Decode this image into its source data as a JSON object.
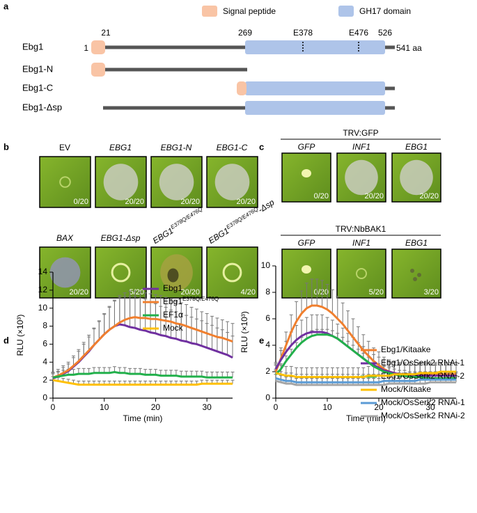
{
  "panel_a": {
    "label": "a",
    "legend": [
      "Signal peptide",
      "GH17 domain"
    ],
    "constructs": [
      "Ebg1",
      "Ebg1-N",
      "Ebg1-C",
      "Ebg1-Δsp"
    ],
    "positions": [
      "1",
      "21",
      "269",
      "E378",
      "E476",
      "526",
      "541 aa"
    ]
  },
  "panel_b": {
    "label": "b",
    "top": {
      "labels": [
        {
          "text": "EV"
        },
        {
          "text": "EBG1"
        },
        {
          "text": "EBG1-N"
        },
        {
          "text": "EBG1-C"
        }
      ],
      "counts": [
        "0/20",
        "20/20",
        "20/20",
        "20/20"
      ]
    },
    "bottom": {
      "labels": [
        {
          "text": "BAX"
        },
        {
          "text": "EBG1-Δsp"
        },
        {
          "text": "EBG1",
          "sup": "E378Q/E476Q"
        },
        {
          "text": "EBG1",
          "sup": "E378Q/E476Q",
          "suffix": "-Δsp"
        }
      ],
      "counts": [
        "20/20",
        "5/20",
        "20/20",
        "4/20"
      ]
    }
  },
  "panel_c": {
    "label": "c",
    "groups": [
      {
        "header": "TRV:GFP",
        "labels": [
          "GFP",
          "INF1",
          "EBG1"
        ],
        "counts": [
          "0/20",
          "20/20",
          "20/20"
        ]
      },
      {
        "header": "TRV:NbBAK1",
        "labels": [
          "GFP",
          "INF1",
          "EBG1"
        ],
        "counts": [
          "0/20",
          "5/20",
          "3/20"
        ]
      }
    ]
  },
  "chart_data": [
    {
      "label": "d",
      "type": "line",
      "xlabel": "Time (min)",
      "ylabel": "RLU (×10³)",
      "xlim": [
        0,
        35
      ],
      "xticks": [
        0,
        10,
        20,
        30
      ],
      "ylim": [
        0,
        14
      ],
      "yticks": [
        0,
        2,
        4,
        6,
        8,
        10,
        12,
        14
      ],
      "x": [
        0,
        1,
        2,
        3,
        4,
        5,
        6,
        7,
        8,
        9,
        10,
        11,
        12,
        13,
        14,
        15,
        16,
        17,
        18,
        19,
        20,
        21,
        22,
        23,
        24,
        25,
        26,
        27,
        28,
        29,
        30,
        31,
        32,
        33,
        34,
        35
      ],
      "series": [
        {
          "name": "Ebg1",
          "color": "#7030a0",
          "values": [
            2.2,
            2.4,
            2.7,
            3.0,
            3.5,
            4.0,
            4.6,
            5.2,
            5.9,
            6.5,
            7.1,
            7.6,
            8.0,
            8.2,
            8.1,
            7.9,
            7.8,
            7.6,
            7.5,
            7.3,
            7.2,
            7.0,
            6.9,
            6.7,
            6.6,
            6.4,
            6.3,
            6.1,
            6.0,
            5.8,
            5.6,
            5.4,
            5.2,
            5.0,
            4.8,
            4.5
          ],
          "errors": [
            0.5,
            0.6,
            0.7,
            0.8,
            1.0,
            1.2,
            1.4,
            1.6,
            1.8,
            2.0,
            2.2,
            2.5,
            2.8,
            3.0,
            3.2,
            3.4,
            3.5,
            3.5,
            3.5,
            3.4,
            3.3,
            3.2,
            3.2,
            3.1,
            3.0,
            3.0,
            2.9,
            2.9,
            2.8,
            2.8,
            2.7,
            2.7,
            2.6,
            2.6,
            2.5,
            2.4
          ]
        },
        {
          "name": "Ebg1",
          "name_sup": "E378Q/E476Q",
          "color": "#f07f2e",
          "values": [
            2.3,
            2.5,
            2.8,
            3.1,
            3.6,
            4.1,
            4.7,
            5.3,
            5.9,
            6.5,
            7.1,
            7.6,
            8.0,
            8.4,
            8.7,
            8.9,
            9.0,
            8.9,
            8.9,
            8.8,
            8.8,
            8.7,
            8.6,
            8.5,
            8.3,
            8.2,
            8.0,
            7.8,
            7.6,
            7.4,
            7.2,
            7.0,
            6.8,
            6.7,
            6.5,
            6.3
          ],
          "errors": [
            0.6,
            0.7,
            0.8,
            0.9,
            1.1,
            1.3,
            1.5,
            1.7,
            1.9,
            2.1,
            2.3,
            2.6,
            2.9,
            3.0,
            3.0,
            3.0,
            2.9,
            2.9,
            2.8,
            2.8,
            2.7,
            2.7,
            2.6,
            2.5,
            2.5,
            2.4,
            2.4,
            2.3,
            2.3,
            2.2,
            2.2,
            2.1,
            2.1,
            2.0,
            2.0,
            2.0
          ]
        },
        {
          "name": "EF1α",
          "color": "#22b04b",
          "values": [
            2.3,
            2.4,
            2.5,
            2.6,
            2.6,
            2.7,
            2.7,
            2.7,
            2.8,
            2.8,
            2.8,
            2.8,
            2.9,
            2.8,
            2.8,
            2.7,
            2.7,
            2.7,
            2.6,
            2.6,
            2.6,
            2.5,
            2.5,
            2.5,
            2.5,
            2.4,
            2.4,
            2.4,
            2.4,
            2.4,
            2.3,
            2.3,
            2.3,
            2.3,
            2.3,
            2.3
          ],
          "errors": [
            0.5,
            0.5,
            0.6,
            0.6,
            0.6,
            0.6,
            0.6,
            0.6,
            0.6,
            0.6,
            0.6,
            0.6,
            0.6,
            0.6,
            0.6,
            0.6,
            0.6,
            0.6,
            0.6,
            0.6,
            0.6,
            0.6,
            0.6,
            0.6,
            0.6,
            0.6,
            0.6,
            0.6,
            0.6,
            0.6,
            0.6,
            0.6,
            0.6,
            0.6,
            0.6,
            0.6
          ]
        },
        {
          "name": "Mock",
          "color": "#ffc000",
          "values": [
            2.0,
            1.9,
            1.8,
            1.7,
            1.6,
            1.5,
            1.5,
            1.5,
            1.5,
            1.5,
            1.5,
            1.5,
            1.5,
            1.5,
            1.5,
            1.5,
            1.5,
            1.5,
            1.5,
            1.5,
            1.5,
            1.5,
            1.5,
            1.5,
            1.5,
            1.5,
            1.5,
            1.5,
            1.5,
            1.6,
            1.6,
            1.6,
            1.6,
            1.6,
            1.6,
            1.6
          ],
          "errors": [
            0.4,
            0.4,
            0.4,
            0.4,
            0.4,
            0.4,
            0.4,
            0.4,
            0.4,
            0.4,
            0.4,
            0.4,
            0.4,
            0.4,
            0.4,
            0.4,
            0.4,
            0.4,
            0.4,
            0.4,
            0.4,
            0.4,
            0.4,
            0.4,
            0.4,
            0.4,
            0.4,
            0.4,
            0.4,
            0.4,
            0.4,
            0.4,
            0.4,
            0.4,
            0.4,
            0.4
          ]
        }
      ]
    },
    {
      "label": "e",
      "type": "line",
      "xlabel": "Time (min)",
      "ylabel": "RLU (×10³)",
      "xlim": [
        0,
        35
      ],
      "xticks": [
        0,
        10,
        20,
        30
      ],
      "ylim": [
        0,
        10
      ],
      "yticks": [
        0,
        2,
        4,
        6,
        8,
        10
      ],
      "x": [
        0,
        1,
        2,
        3,
        4,
        5,
        6,
        7,
        8,
        9,
        10,
        11,
        12,
        13,
        14,
        15,
        16,
        17,
        18,
        19,
        20,
        21,
        22,
        23,
        24,
        25,
        26,
        27,
        28,
        29,
        30,
        31,
        32,
        33,
        34,
        35
      ],
      "series": [
        {
          "name": "Ebg1/Kitaake",
          "color": "#f07f2e",
          "values": [
            2.0,
            3.0,
            4.0,
            5.0,
            5.8,
            6.4,
            6.8,
            7.0,
            7.0,
            6.9,
            6.7,
            6.4,
            6.0,
            5.6,
            5.1,
            4.6,
            4.1,
            3.6,
            3.2,
            2.8,
            2.5,
            2.2,
            2.0,
            1.9,
            1.8,
            1.8,
            1.8,
            1.8,
            1.8,
            1.8,
            1.8,
            1.8,
            1.8,
            1.8,
            1.8,
            1.8
          ],
          "errors": [
            0.5,
            0.8,
            1.0,
            1.3,
            1.5,
            1.7,
            1.9,
            2.0,
            2.0,
            2.0,
            1.9,
            1.8,
            1.7,
            1.6,
            1.5,
            1.4,
            1.3,
            1.2,
            1.1,
            1.0,
            1.0,
            0.9,
            0.9,
            0.9,
            0.9,
            0.9,
            0.9,
            0.9,
            0.9,
            0.9,
            0.9,
            0.9,
            0.9,
            0.9,
            0.9,
            0.9
          ]
        },
        {
          "name": "Ebg1/OsSerk2 RNAi-1",
          "color": "#7030a0",
          "values": [
            2.2,
            2.9,
            3.5,
            4.0,
            4.4,
            4.7,
            4.9,
            5.0,
            5.0,
            5.0,
            4.9,
            4.7,
            4.5,
            4.2,
            3.9,
            3.6,
            3.3,
            3.0,
            2.7,
            2.5,
            2.3,
            2.1,
            2.0,
            1.9,
            1.8,
            1.8,
            1.7,
            1.7,
            1.7,
            1.7,
            1.7,
            1.7,
            1.7,
            1.7,
            1.7,
            1.7
          ],
          "errors": [
            0.5,
            0.7,
            0.8,
            1.0,
            1.1,
            1.2,
            1.2,
            1.3,
            1.3,
            1.3,
            1.2,
            1.2,
            1.1,
            1.1,
            1.0,
            1.0,
            0.9,
            0.9,
            0.9,
            0.8,
            0.8,
            0.8,
            0.8,
            0.8,
            0.8,
            0.8,
            0.8,
            0.8,
            0.8,
            0.8,
            0.8,
            0.8,
            0.8,
            0.8,
            0.8,
            0.8
          ]
        },
        {
          "name": "Ebg1/OsSerk2 RNAi-2",
          "color": "#22b04b",
          "values": [
            1.8,
            2.2,
            2.8,
            3.3,
            3.8,
            4.2,
            4.5,
            4.7,
            4.8,
            4.8,
            4.8,
            4.7,
            4.5,
            4.2,
            3.9,
            3.6,
            3.3,
            3.0,
            2.7,
            2.4,
            2.2,
            2.0,
            1.9,
            1.8,
            1.7,
            1.7,
            1.6,
            1.6,
            1.6,
            1.5,
            1.5,
            1.5,
            1.5,
            1.5,
            1.5,
            1.5
          ],
          "errors": [
            0.4,
            0.4,
            0.4,
            0.4,
            0.4,
            0.4,
            0.4,
            0.4,
            0.4,
            0.4,
            0.4,
            0.4,
            0.4,
            0.4,
            0.4,
            0.4,
            0.4,
            0.4,
            0.4,
            0.4,
            0.4,
            0.4,
            0.4,
            0.4,
            0.4,
            0.4,
            0.4,
            0.4,
            0.4,
            0.4,
            0.4,
            0.4,
            0.4,
            0.4,
            0.4,
            0.4
          ]
        },
        {
          "name": "Mock/Kitaake",
          "color": "#ffc000",
          "values": [
            1.9,
            1.8,
            1.7,
            1.7,
            1.6,
            1.6,
            1.6,
            1.6,
            1.6,
            1.6,
            1.6,
            1.6,
            1.6,
            1.6,
            1.6,
            1.6,
            1.6,
            1.6,
            1.7,
            1.7,
            1.7,
            1.7,
            1.7,
            1.8,
            1.8,
            1.8,
            1.8,
            1.8,
            1.9,
            1.9,
            1.9,
            1.9,
            2.0,
            2.0,
            2.0,
            2.0
          ],
          "errors": [
            0.7,
            0.7,
            0.7,
            0.7,
            0.7,
            0.7,
            0.7,
            0.7,
            0.7,
            0.7,
            0.7,
            0.7,
            0.7,
            0.7,
            0.7,
            0.7,
            0.7,
            0.7,
            0.7,
            0.7,
            0.7,
            0.7,
            0.7,
            0.7,
            0.7,
            0.7,
            0.7,
            0.7,
            0.7,
            0.7,
            0.7,
            0.7,
            0.7,
            0.7,
            0.7,
            0.7
          ]
        },
        {
          "name": "Mock/OsSerk2 RNAi-1",
          "color": "#5b9bd5",
          "values": [
            1.5,
            1.4,
            1.3,
            1.3,
            1.2,
            1.2,
            1.2,
            1.2,
            1.2,
            1.2,
            1.2,
            1.2,
            1.2,
            1.2,
            1.2,
            1.2,
            1.2,
            1.2,
            1.2,
            1.2,
            1.2,
            1.3,
            1.3,
            1.3,
            1.3,
            1.3,
            1.3,
            1.3,
            1.4,
            1.4,
            1.4,
            1.4,
            1.4,
            1.4,
            1.4,
            1.4
          ],
          "errors": [
            0.6,
            0.6,
            0.6,
            0.6,
            0.6,
            0.6,
            0.6,
            0.6,
            0.6,
            0.6,
            0.6,
            0.6,
            0.6,
            0.6,
            0.6,
            0.6,
            0.6,
            0.6,
            0.6,
            0.6,
            0.6,
            0.6,
            0.6,
            0.6,
            0.6,
            0.6,
            0.6,
            0.6,
            0.6,
            0.6,
            0.6,
            0.6,
            0.6,
            0.6,
            0.6,
            0.6
          ]
        },
        {
          "name": "Mock/OsSerk2 RNAi-2",
          "color": "#a5a5a5",
          "values": [
            1.3,
            1.2,
            1.1,
            1.1,
            1.0,
            1.0,
            1.0,
            1.0,
            1.0,
            1.0,
            1.0,
            1.0,
            1.0,
            1.0,
            1.0,
            1.0,
            1.0,
            1.0,
            1.0,
            1.0,
            1.0,
            1.0,
            1.1,
            1.1,
            1.1,
            1.1,
            1.1,
            1.1,
            1.1,
            1.1,
            1.2,
            1.2,
            1.2,
            1.2,
            1.2,
            1.2
          ],
          "errors": [
            0.5,
            0.5,
            0.5,
            0.5,
            0.5,
            0.5,
            0.5,
            0.5,
            0.5,
            0.5,
            0.5,
            0.5,
            0.5,
            0.5,
            0.5,
            0.5,
            0.5,
            0.5,
            0.5,
            0.5,
            0.5,
            0.5,
            0.5,
            0.5,
            0.5,
            0.5,
            0.5,
            0.5,
            0.5,
            0.5,
            0.5,
            0.5,
            0.5,
            0.5,
            0.5,
            0.5
          ]
        }
      ]
    }
  ]
}
